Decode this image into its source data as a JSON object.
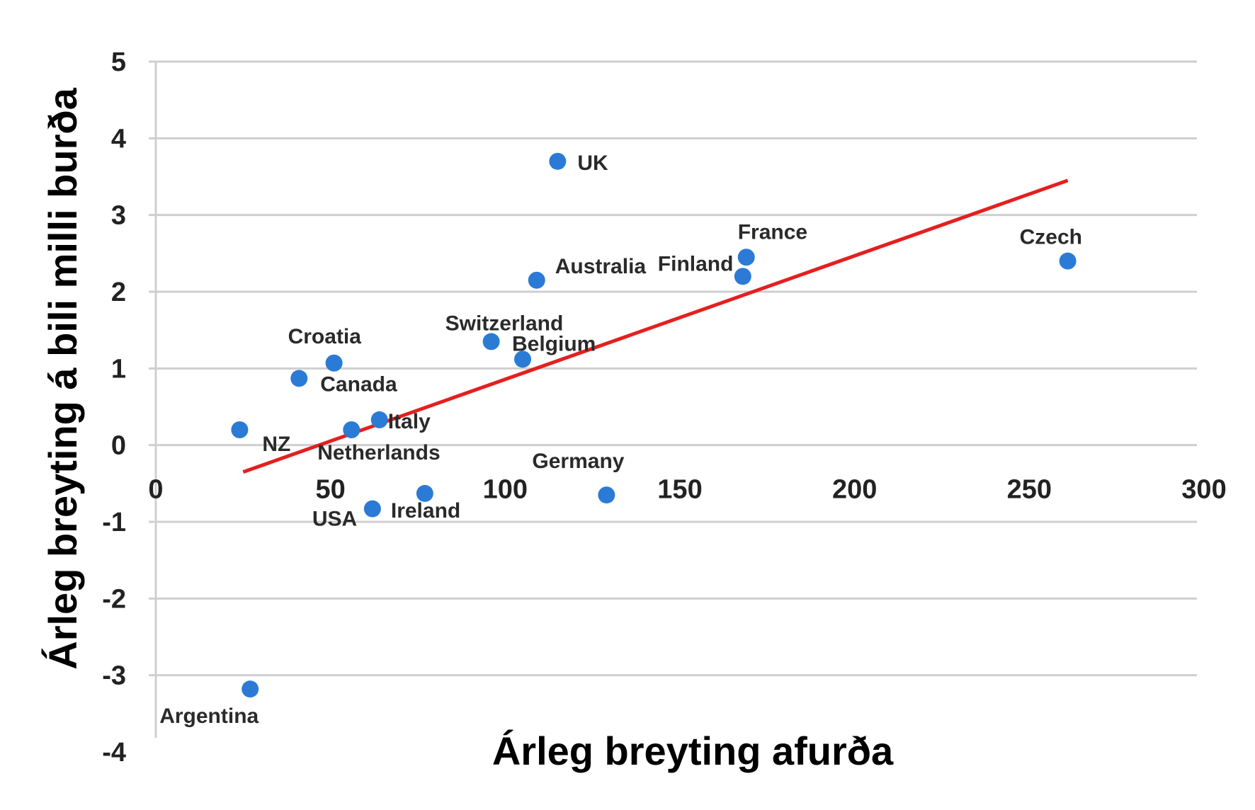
{
  "chart_data": {
    "type": "scatter",
    "xlabel": "Árleg breyting afurða",
    "ylabel": "Árleg breyting á bili milli burða",
    "xlim": [
      0,
      300
    ],
    "ylim": [
      -4,
      5
    ],
    "x_ticks": [
      "0",
      "50",
      "100",
      "150",
      "200",
      "250",
      "300"
    ],
    "y_ticks": [
      "5",
      "4",
      "3",
      "2",
      "1",
      "0",
      "-1",
      "-2",
      "-3",
      "-4"
    ],
    "grid": "horizontal",
    "series": [
      {
        "points": [
          {
            "label": "UK",
            "x": 115,
            "y": 3.7
          },
          {
            "label": "France",
            "x": 169,
            "y": 2.45
          },
          {
            "label": "Finland",
            "x": 168,
            "y": 2.2
          },
          {
            "label": "Czech",
            "x": 261,
            "y": 2.4
          },
          {
            "label": "Australia",
            "x": 109,
            "y": 2.15
          },
          {
            "label": "Switzerland",
            "x": 96,
            "y": 1.35
          },
          {
            "label": "Belgium",
            "x": 105,
            "y": 1.12
          },
          {
            "label": "Croatia",
            "x": 51,
            "y": 1.07
          },
          {
            "label": "Canada",
            "x": 41,
            "y": 0.87
          },
          {
            "label": "Italy",
            "x": 64,
            "y": 0.33
          },
          {
            "label": "NZ",
            "x": 24,
            "y": 0.2
          },
          {
            "label": "Netherlands",
            "x": 56,
            "y": 0.2
          },
          {
            "label": "Germany",
            "x": 129,
            "y": -0.65
          },
          {
            "label": "Ireland",
            "x": 77,
            "y": -0.63
          },
          {
            "label": "USA",
            "x": 62,
            "y": -0.83
          },
          {
            "label": "Argentina",
            "x": 27,
            "y": -3.18
          }
        ]
      }
    ],
    "trendline": {
      "x": [
        25,
        261
      ],
      "y": [
        -0.35,
        3.45
      ],
      "color": "#e51f1f"
    },
    "point_color": "#2b7bd6"
  }
}
